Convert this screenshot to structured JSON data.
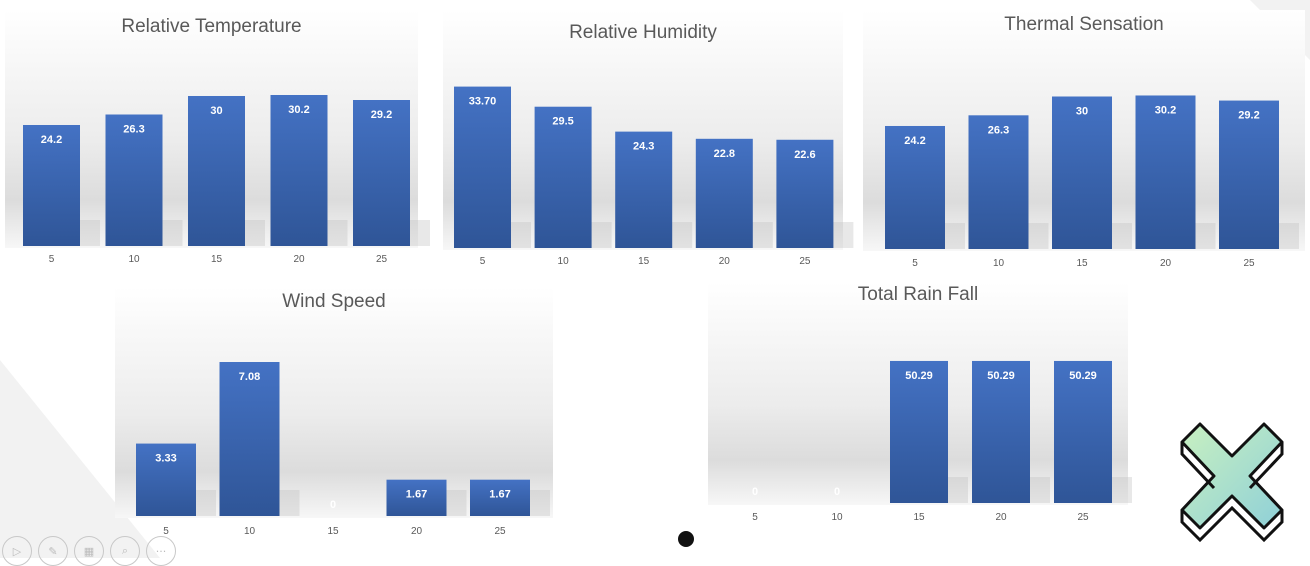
{
  "colors": {
    "bar": "#4472c4",
    "bar_dark": "#2f5597",
    "label": "#ffffff",
    "tick": "#595959",
    "title": "#595959"
  },
  "chart_data": [
    {
      "type": "bar",
      "title": "Relative Temperature",
      "categories": [
        "5",
        "10",
        "15",
        "20",
        "25"
      ],
      "values": [
        24.2,
        26.3,
        30,
        30.2,
        29.2
      ],
      "value_labels": [
        "24.2",
        "26.3",
        "30",
        "30.2",
        "29.2"
      ],
      "ylim": [
        0,
        36
      ]
    },
    {
      "type": "bar",
      "title": "Relative Humidity",
      "categories": [
        "5",
        "10",
        "15",
        "20",
        "25"
      ],
      "values": [
        33.7,
        29.5,
        24.3,
        22.8,
        22.6
      ],
      "value_labels": [
        "33.70",
        "29.5",
        "24.3",
        "22.8",
        "22.6"
      ],
      "ylim": [
        0,
        38
      ]
    },
    {
      "type": "bar",
      "title": "Thermal Sensation",
      "categories": [
        "5",
        "10",
        "15",
        "20",
        "25"
      ],
      "values": [
        24.2,
        26.3,
        30,
        30.2,
        29.2
      ],
      "value_labels": [
        "24.2",
        "26.3",
        "30",
        "30.2",
        "29.2"
      ],
      "ylim": [
        0,
        36
      ]
    },
    {
      "type": "bar",
      "title": "Wind Speed",
      "categories": [
        "5",
        "10",
        "15",
        "20",
        "25"
      ],
      "values": [
        3.33,
        7.08,
        0,
        1.67,
        1.67
      ],
      "value_labels": [
        "3.33",
        "7.08",
        "0",
        "1.67",
        "1.67"
      ],
      "ylim": [
        0,
        8
      ]
    },
    {
      "type": "bar",
      "title": "Total Rain Fall",
      "categories": [
        "5",
        "10",
        "15",
        "20",
        "25"
      ],
      "values": [
        0,
        0,
        50.29,
        50.29,
        50.29
      ],
      "value_labels": [
        "0",
        "0",
        "50.29",
        "50.29",
        "50.29"
      ],
      "ylim": [
        0,
        57
      ]
    }
  ],
  "controls": [
    {
      "name": "play-icon",
      "glyph": "▷"
    },
    {
      "name": "pen-icon",
      "glyph": "✎"
    },
    {
      "name": "slides-icon",
      "glyph": "▦"
    },
    {
      "name": "zoom-icon",
      "glyph": "⌕"
    },
    {
      "name": "more-icon",
      "glyph": "···"
    }
  ]
}
